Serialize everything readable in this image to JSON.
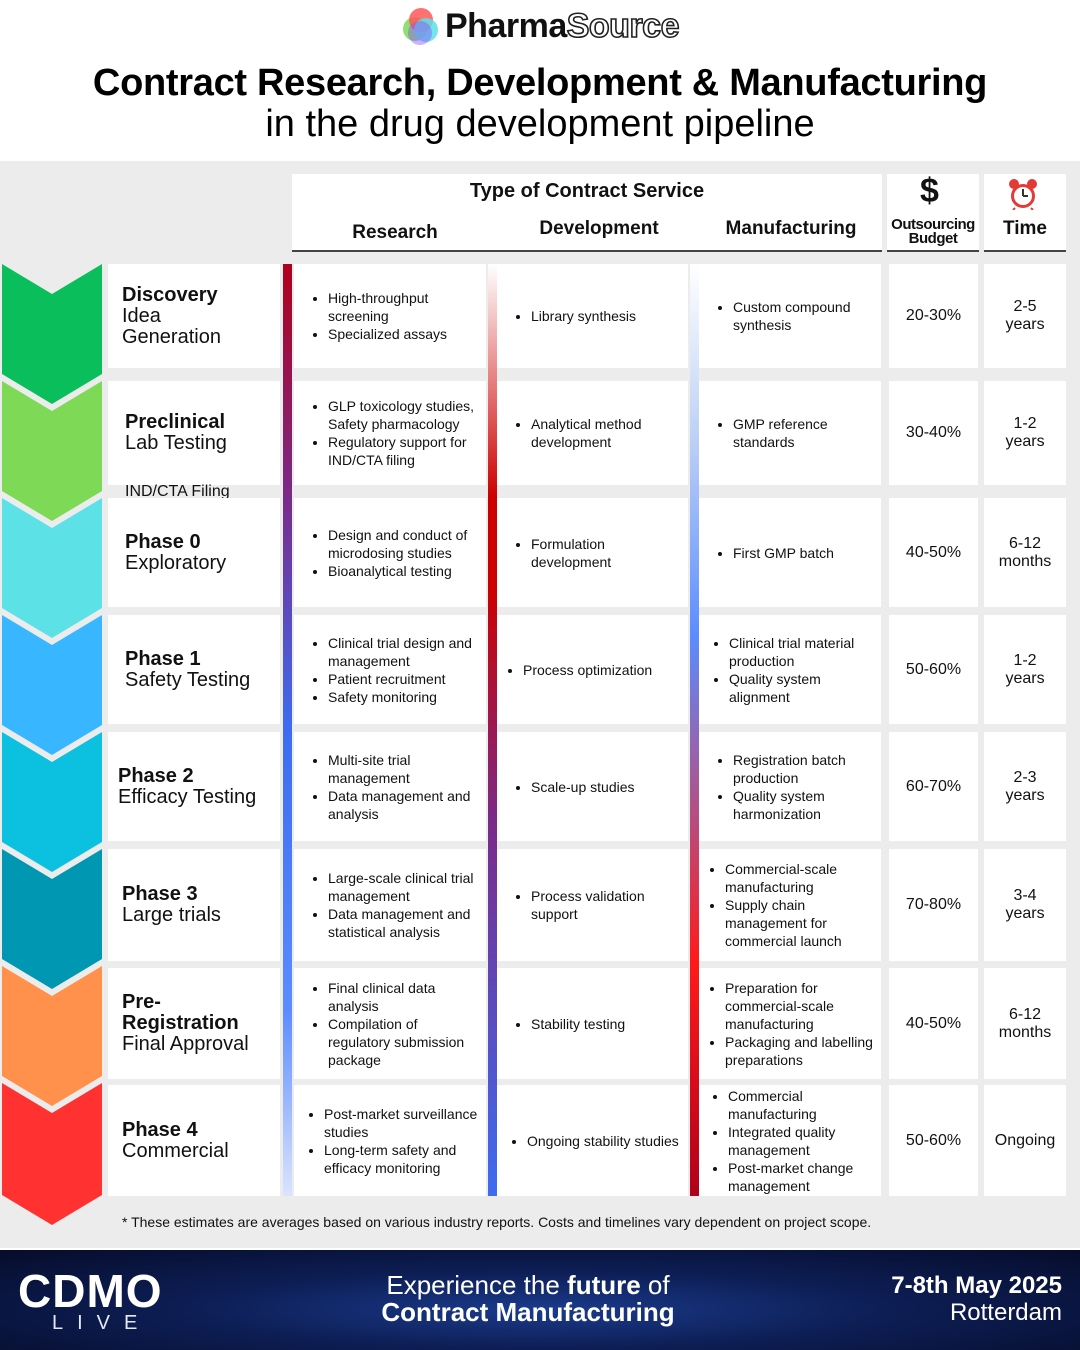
{
  "logo": {
    "part1": "Pharma",
    "part2": "Source"
  },
  "title": {
    "line1": "Contract Research, Development & Manufacturing",
    "line2": "in the drug development pipeline"
  },
  "header": {
    "type_of_service": "Type of Contract Service",
    "research": "Research",
    "development": "Development",
    "manufacturing": "Manufacturing",
    "budget_symbol": "$",
    "budget_line1": "Outsourcing",
    "budget_line2": "Budget",
    "time": "Time"
  },
  "ind_label": "IND/CTA Filing",
  "stage_colors": [
    "#0abf5b",
    "#7ed957",
    "#5ce1e6",
    "#38b6ff",
    "#0cc0df",
    "#0097b2",
    "#ff914d",
    "#ff3131"
  ],
  "stages": [
    {
      "bold": "Discovery",
      "sub": "Idea Generation",
      "research": [
        "High-throughput screening",
        "Specialized assays"
      ],
      "development": [
        "Library synthesis"
      ],
      "manufacturing": [
        "Custom compound synthesis"
      ],
      "budget": "20-30%",
      "time": "2-5 years"
    },
    {
      "bold": "Preclinical",
      "sub": "Lab Testing",
      "research": [
        "GLP toxicology studies, Safety pharmacology",
        "Regulatory support for IND/CTA filing"
      ],
      "development": [
        "Analytical method development"
      ],
      "manufacturing": [
        "GMP reference standards"
      ],
      "budget": "30-40%",
      "time": "1-2 years"
    },
    {
      "bold": "Phase 0",
      "sub": "Exploratory",
      "research": [
        "Design and conduct of microdosing studies",
        "Bioanalytical testing"
      ],
      "development": [
        "Formulation development"
      ],
      "manufacturing": [
        "First GMP batch"
      ],
      "budget": "40-50%",
      "time": "6-12 months"
    },
    {
      "bold": "Phase 1",
      "sub": "Safety Testing",
      "research": [
        "Clinical trial design and management",
        "Patient recruitment",
        "Safety monitoring"
      ],
      "development": [
        "Process optimization"
      ],
      "manufacturing": [
        "Clinical trial material production",
        "Quality system alignment"
      ],
      "budget": "50-60%",
      "time": "1-2 years"
    },
    {
      "bold": "Phase 2",
      "sub": "Efficacy Testing",
      "research": [
        "Multi-site trial management",
        "Data management and analysis"
      ],
      "development": [
        "Scale-up studies"
      ],
      "manufacturing": [
        "Registration batch production",
        "Quality system harmonization"
      ],
      "budget": "60-70%",
      "time": "2-3 years"
    },
    {
      "bold": "Phase 3",
      "sub": "Large trials",
      "research": [
        "Large-scale clinical trial management",
        "Data management and statistical analysis"
      ],
      "development": [
        "Process validation support"
      ],
      "manufacturing": [
        "Commercial-scale manufacturing",
        "Supply chain management for commercial launch"
      ],
      "budget": "70-80%",
      "time": "3-4 years"
    },
    {
      "bold": "Pre-Registration",
      "sub": "Final Approval",
      "research": [
        "Final clinical data analysis",
        "Compilation of regulatory submission package"
      ],
      "development": [
        "Stability testing"
      ],
      "manufacturing": [
        "Preparation for commercial-scale manufacturing",
        "Packaging and labelling preparations"
      ],
      "budget": "40-50%",
      "time": "6-12 months"
    },
    {
      "bold": "Phase 4",
      "sub": "Commercial",
      "research": [
        "Post-market surveillance studies",
        "Long-term safety and efficacy monitoring"
      ],
      "development": [
        "Ongoing  stability studies"
      ],
      "manufacturing": [
        "Commercial manufacturing",
        "Integrated quality management",
        "Post-market change management"
      ],
      "budget": "50-60%",
      "time": "Ongoing"
    }
  ],
  "footnote": "* These estimates are averages based on various industry reports. Costs and timelines vary dependent on project scope.",
  "banner": {
    "brand": "CDMO",
    "brand_sub": "LIVE",
    "tag_part1": "Experience the ",
    "tag_bold": "future",
    "tag_part2": " of",
    "tag_line2": "Contract Manufacturing",
    "date": "7-8th May 2025",
    "city": "Rotterdam"
  }
}
